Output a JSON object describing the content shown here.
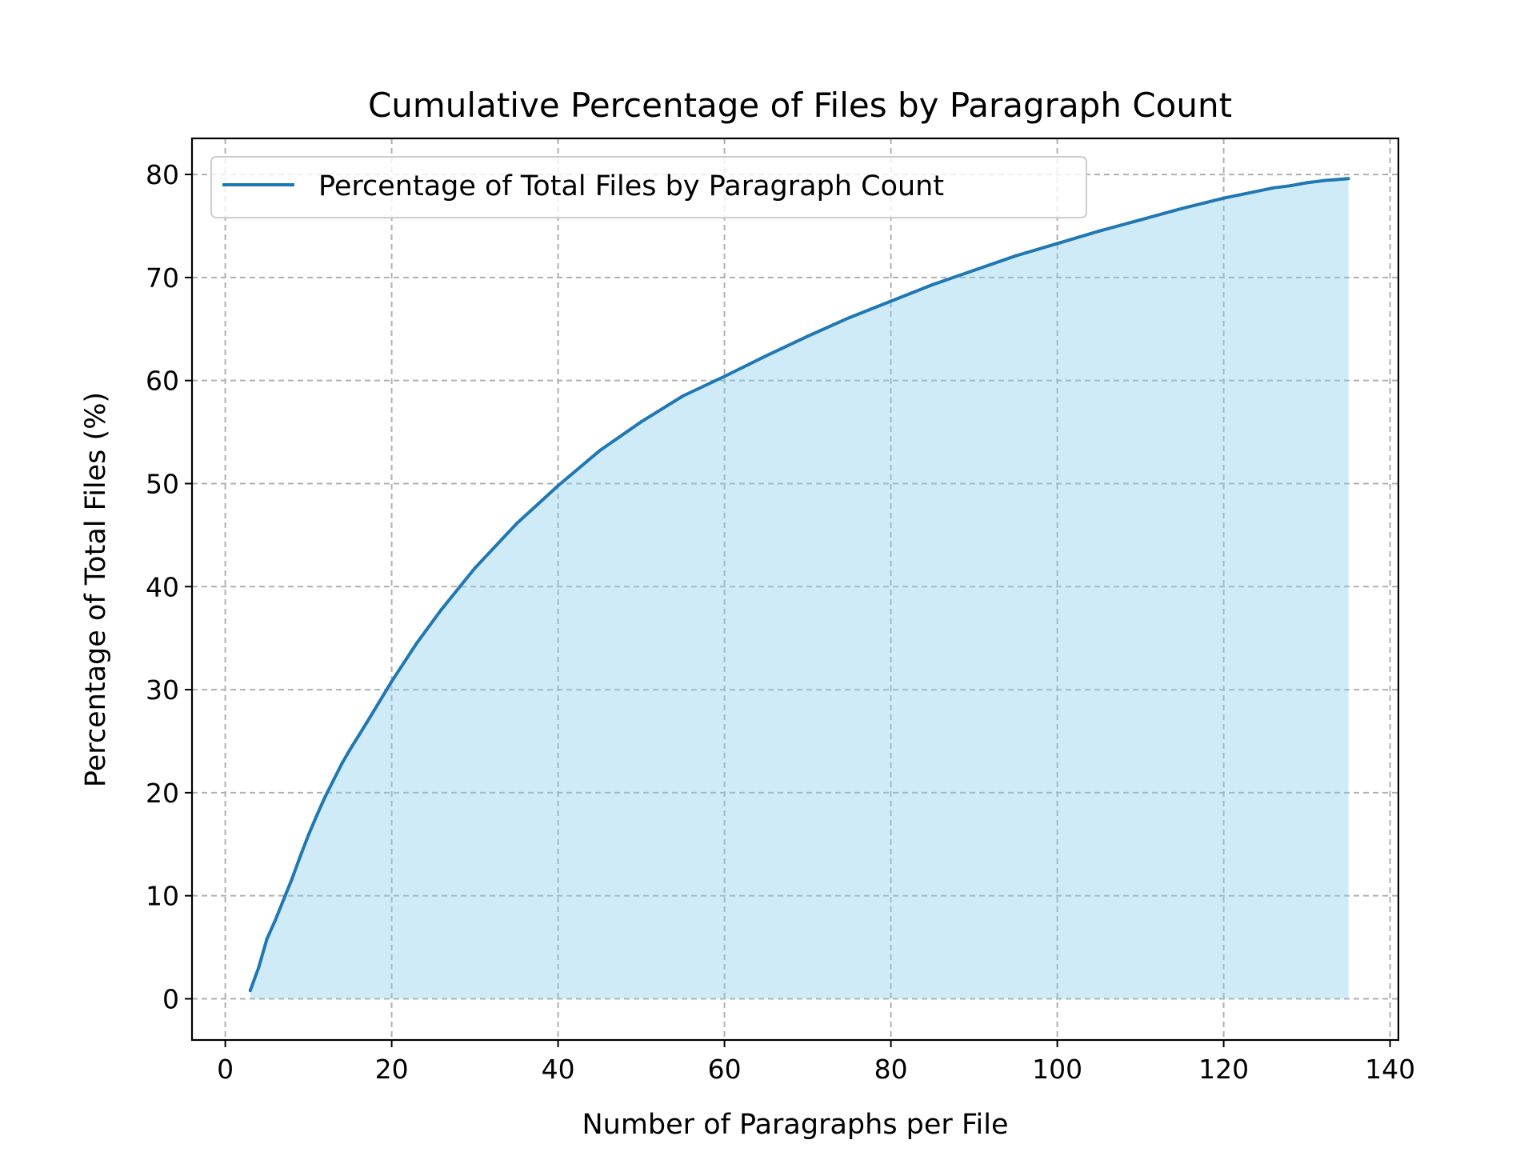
{
  "chart_data": {
    "type": "area",
    "title": "Cumulative Percentage of Files by Paragraph Count",
    "xlabel": "Number of Paragraphs per File",
    "ylabel": "Percentage of Total Files (%)",
    "xlim": [
      -4,
      141
    ],
    "ylim": [
      -4,
      83.5
    ],
    "xticks": [
      0,
      20,
      40,
      60,
      80,
      100,
      120,
      140
    ],
    "yticks": [
      0,
      10,
      20,
      30,
      40,
      50,
      60,
      70,
      80
    ],
    "grid": true,
    "legend_position": "upper-left",
    "colors": {
      "line": "#1f77b4",
      "fill": "#87ceeb"
    },
    "series": [
      {
        "name": "Percentage of Total Files by Paragraph Count",
        "x": [
          3,
          4,
          5,
          6,
          7,
          8,
          9,
          10,
          11,
          12,
          13,
          14,
          15,
          17,
          20,
          23,
          26,
          30,
          35,
          40,
          45,
          50,
          55,
          60,
          65,
          70,
          75,
          80,
          85,
          90,
          95,
          100,
          105,
          110,
          115,
          120,
          126,
          128,
          130,
          132,
          135
        ],
        "values": [
          0.8,
          3.0,
          5.8,
          7.6,
          9.6,
          11.6,
          13.8,
          15.9,
          17.8,
          19.6,
          21.2,
          22.8,
          24.2,
          26.8,
          30.8,
          34.5,
          37.8,
          41.8,
          46.1,
          49.8,
          53.2,
          56.0,
          58.5,
          60.4,
          62.4,
          64.3,
          66.1,
          67.7,
          69.3,
          70.7,
          72.1,
          73.3,
          74.5,
          75.6,
          76.7,
          77.7,
          78.7,
          78.9,
          79.2,
          79.4,
          79.6
        ]
      }
    ]
  }
}
